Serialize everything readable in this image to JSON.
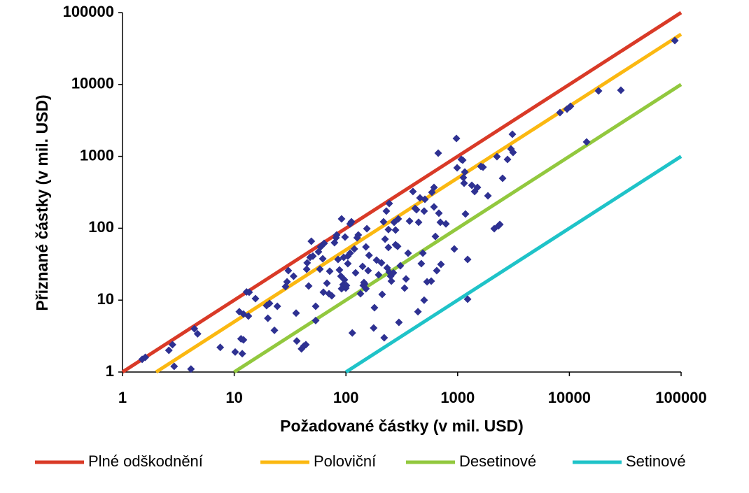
{
  "chart_data": {
    "type": "scatter",
    "x_label": "Požadované částky (v mil. USD)",
    "y_label": "Přiznané částky (v mil. USD)",
    "xlog": true,
    "ylog": true,
    "xlim": [
      1,
      100000
    ],
    "ylim": [
      1,
      100000
    ],
    "xticks": [
      1,
      10,
      100,
      1000,
      10000,
      100000
    ],
    "yticks": [
      1,
      10,
      100,
      1000,
      10000,
      100000
    ],
    "grid": false,
    "legend": "bottom",
    "points": {
      "color": "#2e3192",
      "x": [
        1.5,
        1.6,
        2.6,
        2.8,
        2.9,
        4.1,
        4.4,
        4.7,
        7.5,
        10.2,
        11.1,
        11.5,
        11.8,
        12.1,
        12.1,
        12.9,
        13.4,
        13.6,
        15.5,
        20,
        19.5,
        20.7,
        22.9,
        24.3,
        28.8,
        29.7,
        30.5,
        34,
        35.8,
        36.3,
        40,
        42,
        43.8,
        44.5,
        46.4,
        45,
        47.8,
        49,
        50.6,
        53.6,
        56.8,
        58.5,
        53.6,
        59.3,
        62,
        63.8,
        62.8,
        67.6,
        70.5,
        71.6,
        74.7,
        79,
        81.5,
        82.6,
        85,
        87.5,
        90.2,
        91.4,
        94.2,
        96.9,
        95.5,
        104,
        101,
        99.7,
        98.2,
        104,
        109,
        112,
        114,
        119,
        122,
        129,
        135,
        141,
        143,
        147,
        151,
        151,
        154,
        158,
        161,
        177,
        180,
        188,
        196,
        208,
        211,
        217,
        220,
        224,
        234,
        240,
        240,
        244,
        251,
        255,
        230,
        244,
        266,
        270,
        278,
        278,
        290,
        294,
        307,
        298,
        335,
        345,
        398,
        416,
        428,
        441,
        447,
        460,
        473,
        488,
        501,
        501,
        509,
        532,
        580,
        588,
        614,
        632,
        650,
        670,
        679,
        700,
        709,
        785,
        933,
        975,
        989,
        1079,
        1110,
        1142,
        1159,
        1175,
        1228,
        1228,
        1339,
        1419,
        1503,
        1615,
        1687,
        1866,
        2125,
        2249,
        2317,
        2384,
        2525,
        2793,
        3001,
        3090,
        3133,
        8240,
        9530,
        10230,
        14260,
        18230,
        28910,
        87900,
        91.4,
        360,
        371,
        614,
        109,
        126,
        1125,
        145
      ],
      "values": [
        1.5,
        1.6,
        2.0,
        2.4,
        1.2,
        1.1,
        4.0,
        3.4,
        2.2,
        1.9,
        6.9,
        2.9,
        1.8,
        2.8,
        6.4,
        13,
        6.0,
        12.9,
        10.5,
        5.6,
        8.4,
        9.0,
        3.8,
        8.2,
        15.4,
        18,
        25.7,
        21.5,
        6.6,
        2.7,
        2.1,
        2.3,
        2.4,
        26.9,
        15.7,
        33,
        39.4,
        66,
        41,
        5.2,
        47,
        27,
        8.2,
        55,
        37.7,
        61.7,
        12.9,
        17.2,
        12.3,
        25.2,
        11.5,
        63,
        73.8,
        80.7,
        36.8,
        26.3,
        21.5,
        14.4,
        16.4,
        19.2,
        39.4,
        41,
        16,
        14.7,
        75.4,
        32.2,
        45,
        123,
        3.5,
        51.5,
        24,
        80.7,
        12.3,
        29.4,
        16,
        16.8,
        14.4,
        55,
        98.6,
        25.7,
        42,
        4.1,
        7.85,
        36,
        22.5,
        33,
        12,
        123,
        3.0,
        70.5,
        28.1,
        54,
        96,
        24.6,
        21.5,
        18.4,
        173,
        221,
        24,
        121,
        94.4,
        59,
        56,
        135,
        30.1,
        4.9,
        14.7,
        19.7,
        324,
        189,
        181,
        6.9,
        121,
        264,
        32.2,
        45,
        10,
        173,
        253,
        18,
        18.4,
        316,
        370,
        77,
        25.7,
        1109,
        162,
        121,
        31.5,
        115,
        51.5,
        1774,
        692,
        906,
        885,
        423,
        606,
        158,
        36.8,
        10.3,
        396,
        324,
        370,
        724,
        708,
        283,
        98.6,
        991,
        108,
        113,
        495,
        906,
        1268,
        2029,
        1133,
        4064,
        4550,
        4970,
        1585,
        8140,
        8320,
        40800,
        135,
        45,
        126,
        198,
        115,
        73.8,
        506,
        17.6
      ]
    },
    "series": [
      {
        "name": "Plné odškodnění",
        "color": "#d93a27",
        "x": [
          1,
          100000
        ],
        "values": [
          1,
          100000
        ]
      },
      {
        "name": "Poloviční",
        "color": "#fbb811",
        "x": [
          2,
          100000
        ],
        "values": [
          1,
          50000
        ]
      },
      {
        "name": "Desetinové",
        "color": "#92c83e",
        "x": [
          10,
          100000
        ],
        "values": [
          1,
          10000
        ]
      },
      {
        "name": "Setinové",
        "color": "#1fc3c8",
        "x": [
          100,
          100000
        ],
        "values": [
          1,
          1000
        ]
      }
    ]
  }
}
